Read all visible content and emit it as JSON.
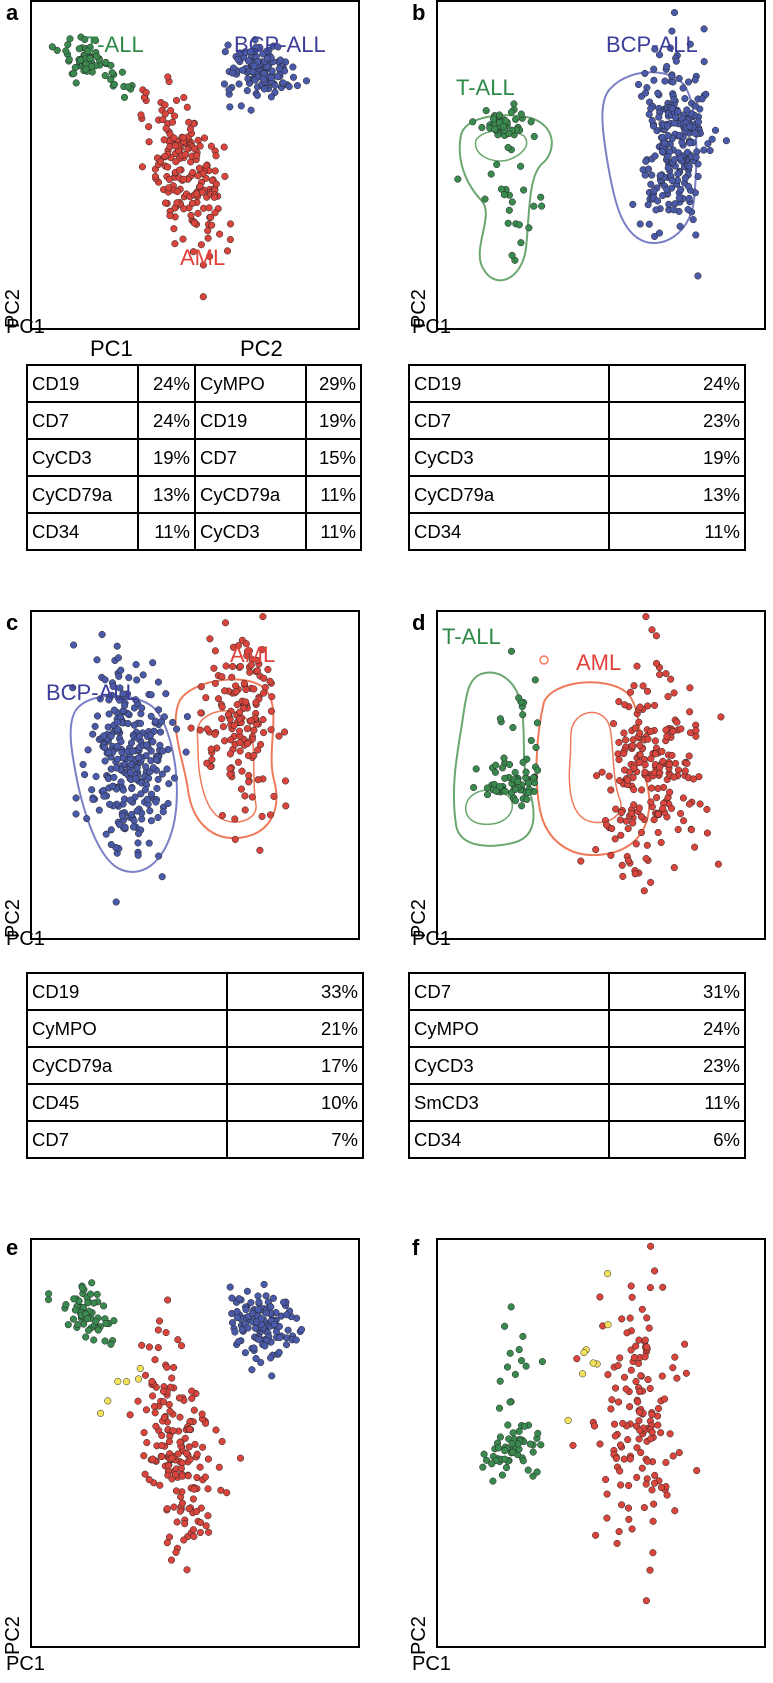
{
  "colors": {
    "t_all": "#3a8a4f",
    "bcp_all": "#4a5aa8",
    "aml": "#d9453c",
    "yellow": "#f2e15a",
    "t_all_label": "#2f8a4a",
    "bcp_all_label": "#3d3d99",
    "aml_label": "#e0413a",
    "contour_t_all": "#6aa86f",
    "contour_bcp_all": "#7b7fc6",
    "contour_aml": "#ef7a5a"
  },
  "axes": {
    "x": "PC1",
    "y": "PC2"
  },
  "panels": {
    "a": {
      "letter": "a",
      "labels": [
        "T-ALL",
        "BCP-ALL",
        "AML"
      ]
    },
    "b": {
      "letter": "b",
      "labels": [
        "T-ALL",
        "BCP-ALL"
      ]
    },
    "c": {
      "letter": "c",
      "labels": [
        "BCP-ALL",
        "AML"
      ]
    },
    "d": {
      "letter": "d",
      "labels": [
        "T-ALL",
        "AML"
      ]
    },
    "e": {
      "letter": "e"
    },
    "f": {
      "letter": "f"
    }
  },
  "tables": {
    "a": {
      "headers": [
        "PC1",
        "PC2"
      ],
      "rows": [
        [
          "CD19",
          "24%",
          "CyMPO",
          "29%"
        ],
        [
          "CD7",
          "24%",
          "CD19",
          "19%"
        ],
        [
          "CyCD3",
          "19%",
          "CD7",
          "15%"
        ],
        [
          "CyCD79a",
          "13%",
          "CyCD79a",
          "11%"
        ],
        [
          "CD34",
          "11%",
          "CyCD3",
          "11%"
        ]
      ]
    },
    "b": {
      "rows": [
        [
          "CD19",
          "24%"
        ],
        [
          "CD7",
          "23%"
        ],
        [
          "CyCD3",
          "19%"
        ],
        [
          "CyCD79a",
          "13%"
        ],
        [
          "CD34",
          "11%"
        ]
      ]
    },
    "c": {
      "rows": [
        [
          "CD19",
          "33%"
        ],
        [
          "CyMPO",
          "21%"
        ],
        [
          "CyCD79a",
          "17%"
        ],
        [
          "CD45",
          "10%"
        ],
        [
          "CD7",
          "7%"
        ]
      ]
    },
    "d": {
      "rows": [
        [
          "CD7",
          "31%"
        ],
        [
          "CyMPO",
          "24%"
        ],
        [
          "CyCD3",
          "23%"
        ],
        [
          "SmCD3",
          "11%"
        ],
        [
          "CD34",
          "6%"
        ]
      ]
    }
  },
  "chart_data": [
    {
      "type": "scatter",
      "panel": "a",
      "xlabel": "PC1",
      "ylabel": "PC2",
      "xlim": [
        0,
        100
      ],
      "ylim": [
        0,
        100
      ],
      "series": [
        {
          "name": "T-ALL",
          "clusters": [
            {
              "cx": 17,
              "cy": 82,
              "sx": 4,
              "sy": 3,
              "n": 60,
              "rot": -35
            },
            {
              "cx": 28,
              "cy": 74,
              "sx": 3,
              "sy": 2,
              "n": 10,
              "rot": -35
            }
          ]
        },
        {
          "name": "BCP-ALL",
          "clusters": [
            {
              "cx": 70,
              "cy": 79,
              "sx": 5,
              "sy": 4,
              "n": 130,
              "rot": 0
            }
          ]
        },
        {
          "name": "AML",
          "clusters": [
            {
              "cx": 47,
              "cy": 47,
              "sx": 5,
              "sy": 12,
              "n": 190,
              "rot": 15
            }
          ]
        }
      ]
    },
    {
      "type": "scatter",
      "panel": "b",
      "xlabel": "PC1",
      "ylabel": "PC2",
      "xlim": [
        0,
        100
      ],
      "ylim": [
        0,
        100
      ],
      "series": [
        {
          "name": "T-ALL",
          "clusters": [
            {
              "cx": 20,
              "cy": 63,
              "sx": 4,
              "sy": 2.5,
              "n": 45,
              "rot": 0
            },
            {
              "cx": 24,
              "cy": 38,
              "sx": 5,
              "sy": 11,
              "n": 22,
              "rot": 0
            }
          ]
        },
        {
          "name": "BCP-ALL",
          "clusters": [
            {
              "cx": 72,
              "cy": 58,
              "sx": 5,
              "sy": 13,
              "n": 260,
              "rot": 0
            }
          ]
        }
      ]
    },
    {
      "type": "scatter",
      "panel": "c",
      "xlabel": "PC1",
      "ylabel": "PC2",
      "xlim": [
        0,
        100
      ],
      "ylim": [
        0,
        100
      ],
      "series": [
        {
          "name": "BCP-ALL",
          "clusters": [
            {
              "cx": 30,
              "cy": 55,
              "sx": 6,
              "sy": 15,
              "n": 280,
              "rot": 0
            }
          ]
        },
        {
          "name": "AML",
          "clusters": [
            {
              "cx": 65,
              "cy": 65,
              "sx": 6,
              "sy": 13,
              "n": 160,
              "rot": 0
            }
          ]
        }
      ]
    },
    {
      "type": "scatter",
      "panel": "d",
      "xlabel": "PC1",
      "ylabel": "PC2",
      "xlim": [
        0,
        100
      ],
      "ylim": [
        0,
        100
      ],
      "series": [
        {
          "name": "T-ALL",
          "clusters": [
            {
              "cx": 23,
              "cy": 48,
              "sx": 5,
              "sy": 3,
              "n": 60,
              "rot": 0
            },
            {
              "cx": 24,
              "cy": 70,
              "sx": 4,
              "sy": 9,
              "n": 14,
              "rot": 0
            }
          ]
        },
        {
          "name": "AML",
          "clusters": [
            {
              "cx": 65,
              "cy": 52,
              "sx": 8,
              "sy": 14,
              "n": 220,
              "rot": 0
            }
          ]
        }
      ]
    },
    {
      "type": "scatter",
      "panel": "e",
      "xlabel": "PC1",
      "ylabel": "PC2",
      "xlim": [
        0,
        100
      ],
      "ylim": [
        0,
        100
      ],
      "series": [
        {
          "clusters": [
            {
              "cx": 17,
              "cy": 82,
              "sx": 4,
              "sy": 3,
              "n": 60,
              "rot": -35
            }
          ]
        },
        {
          "clusters": [
            {
              "cx": 70,
              "cy": 79,
              "sx": 5,
              "sy": 4,
              "n": 130,
              "rot": 0
            }
          ]
        },
        {
          "clusters": [
            {
              "cx": 45,
              "cy": 48,
              "sx": 5,
              "sy": 11,
              "n": 180,
              "rot": 15
            }
          ]
        },
        {
          "clusters": [
            {
              "cx": 30,
              "cy": 63,
              "sx": 4,
              "sy": 3,
              "n": 6,
              "rot": 0
            }
          ]
        }
      ]
    },
    {
      "type": "scatter",
      "panel": "f",
      "xlabel": "PC1",
      "ylabel": "PC2",
      "xlim": [
        0,
        100
      ],
      "ylim": [
        0,
        100
      ],
      "series": [
        {
          "clusters": [
            {
              "cx": 22,
              "cy": 48,
              "sx": 5,
              "sy": 3,
              "n": 55,
              "rot": 0
            },
            {
              "cx": 24,
              "cy": 70,
              "sx": 4,
              "sy": 9,
              "n": 14,
              "rot": 0
            }
          ]
        },
        {
          "clusters": [
            {
              "cx": 62,
              "cy": 55,
              "sx": 7,
              "sy": 15,
              "n": 150,
              "rot": 0
            }
          ]
        },
        {
          "clusters": [
            {
              "cx": 46,
              "cy": 75,
              "sx": 3,
              "sy": 8,
              "n": 8,
              "rot": 0
            }
          ]
        }
      ]
    }
  ]
}
